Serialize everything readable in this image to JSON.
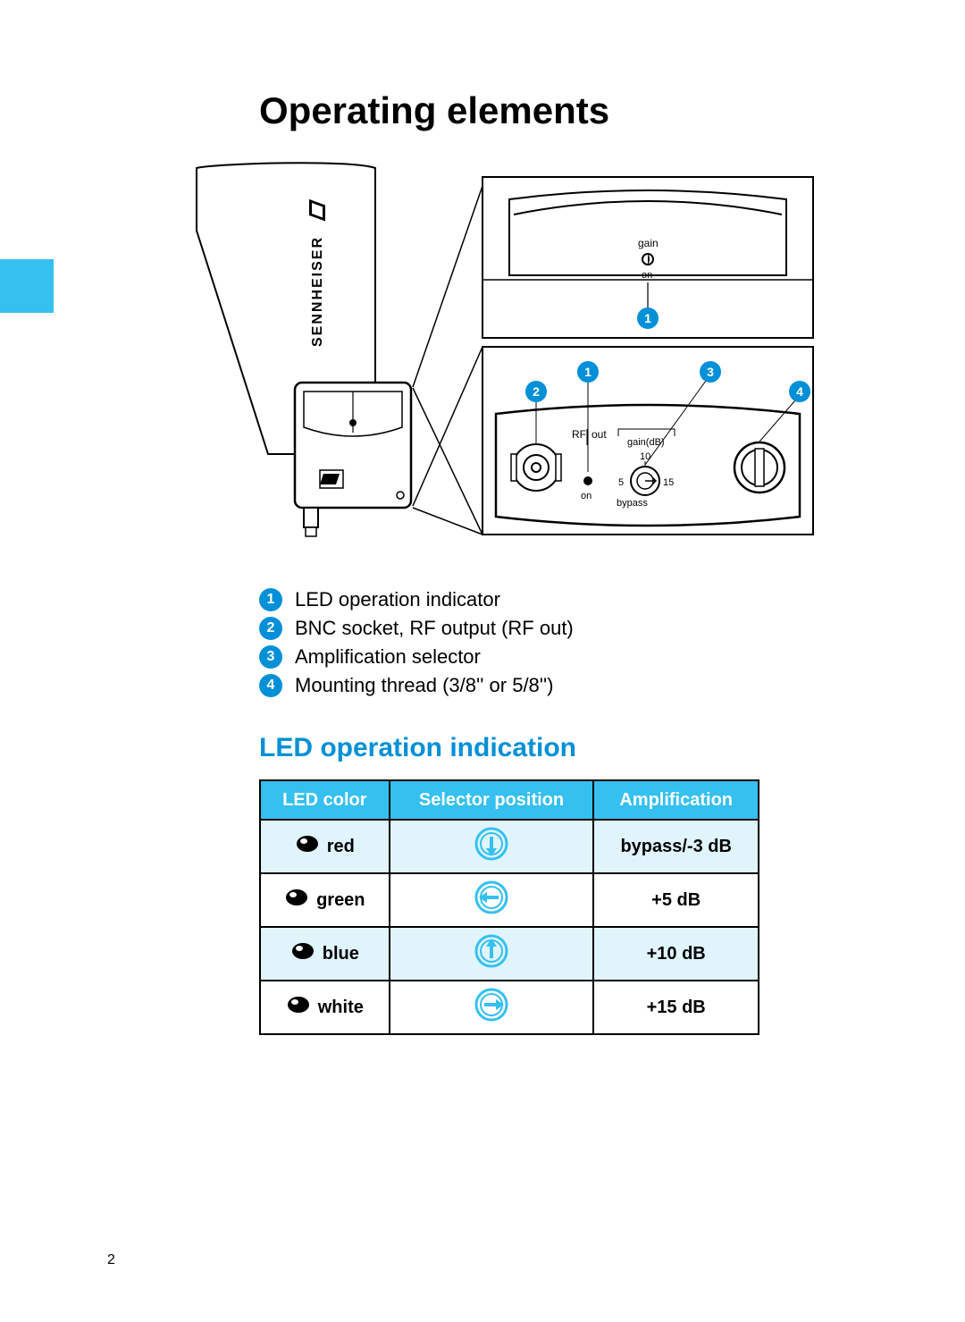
{
  "page_number": "2",
  "title": "Operating elements",
  "brand_label": "SENNHEISER",
  "diagram_top": {
    "gain_label": "gain",
    "on_label": "on"
  },
  "diagram_bottom": {
    "rf_label": "RF",
    "out_label": "out",
    "gaindb_label": "gain(dB)",
    "val_10": "10",
    "val_5": "5",
    "val_15": "15",
    "on_label": "on",
    "bypass_label": "bypass"
  },
  "callouts": {
    "c1": "1",
    "c2": "2",
    "c3": "3",
    "c4": "4"
  },
  "legend": [
    {
      "num": "1",
      "text": "LED operation indicator"
    },
    {
      "num": "2",
      "text": "BNC socket, RF output (RF out)"
    },
    {
      "num": "3",
      "text": "Amplification selector"
    },
    {
      "num": "4",
      "text": "Mounting thread (3/8'' or 5/8'')"
    }
  ],
  "subheading": "LED operation indication",
  "table": {
    "headers": {
      "col1": "LED color",
      "col2": "Selector position",
      "col3": "Amplification"
    },
    "rows": [
      {
        "color_name": "red",
        "arrow_angle": 180,
        "amp": "bypass/-3 dB",
        "shaded": true
      },
      {
        "color_name": "green",
        "arrow_angle": 270,
        "amp": "+5 dB",
        "shaded": false
      },
      {
        "color_name": "blue",
        "arrow_angle": 0,
        "amp": "+10 dB",
        "shaded": true
      },
      {
        "color_name": "white",
        "arrow_angle": 90,
        "amp": "+15 dB",
        "shaded": false
      }
    ]
  },
  "colors": {
    "accent_blue": "#0090d7",
    "light_blue": "#35c0f0",
    "row_shade": "#e0f4fc",
    "black": "#000000",
    "white": "#ffffff"
  }
}
